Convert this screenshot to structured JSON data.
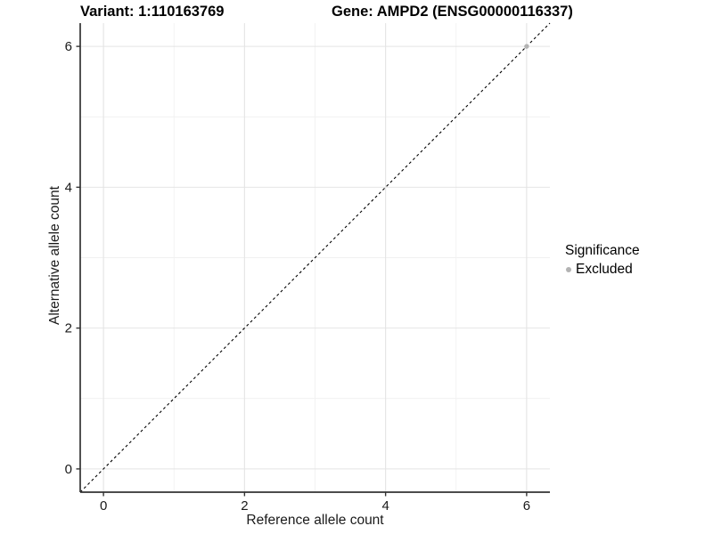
{
  "chart_data": {
    "type": "scatter",
    "title_left": "Variant: 1:110163769",
    "title_right": "Gene: AMPD2 (ENSG00000116337)",
    "xlabel": "Reference allele count",
    "ylabel": "Alternative allele count",
    "xlim": [
      -0.33,
      6.33
    ],
    "ylim": [
      -0.33,
      6.33
    ],
    "x_ticks": [
      0,
      2,
      4,
      6
    ],
    "y_ticks": [
      0,
      2,
      4,
      6
    ],
    "x_minor_ticks": [
      1,
      3,
      5
    ],
    "y_minor_ticks": [
      1,
      3,
      5
    ],
    "grid": true,
    "identity_line": {
      "slope": 1,
      "intercept": 0,
      "style": "dashed",
      "color": "#000000"
    },
    "series": [
      {
        "name": "Excluded",
        "color": "#b3b3b3",
        "points": [
          {
            "x": 6,
            "y": 6
          }
        ]
      }
    ],
    "legend": {
      "title": "Significance",
      "position": "right",
      "items": [
        {
          "label": "Excluded",
          "color": "#b3b3b3",
          "marker": "dot-icon"
        }
      ]
    },
    "colors": {
      "background": "#ffffff",
      "grid_major": "#e4e4e4",
      "grid_minor": "#f1f1f1",
      "axis": "#333333",
      "text": "#000000"
    }
  }
}
